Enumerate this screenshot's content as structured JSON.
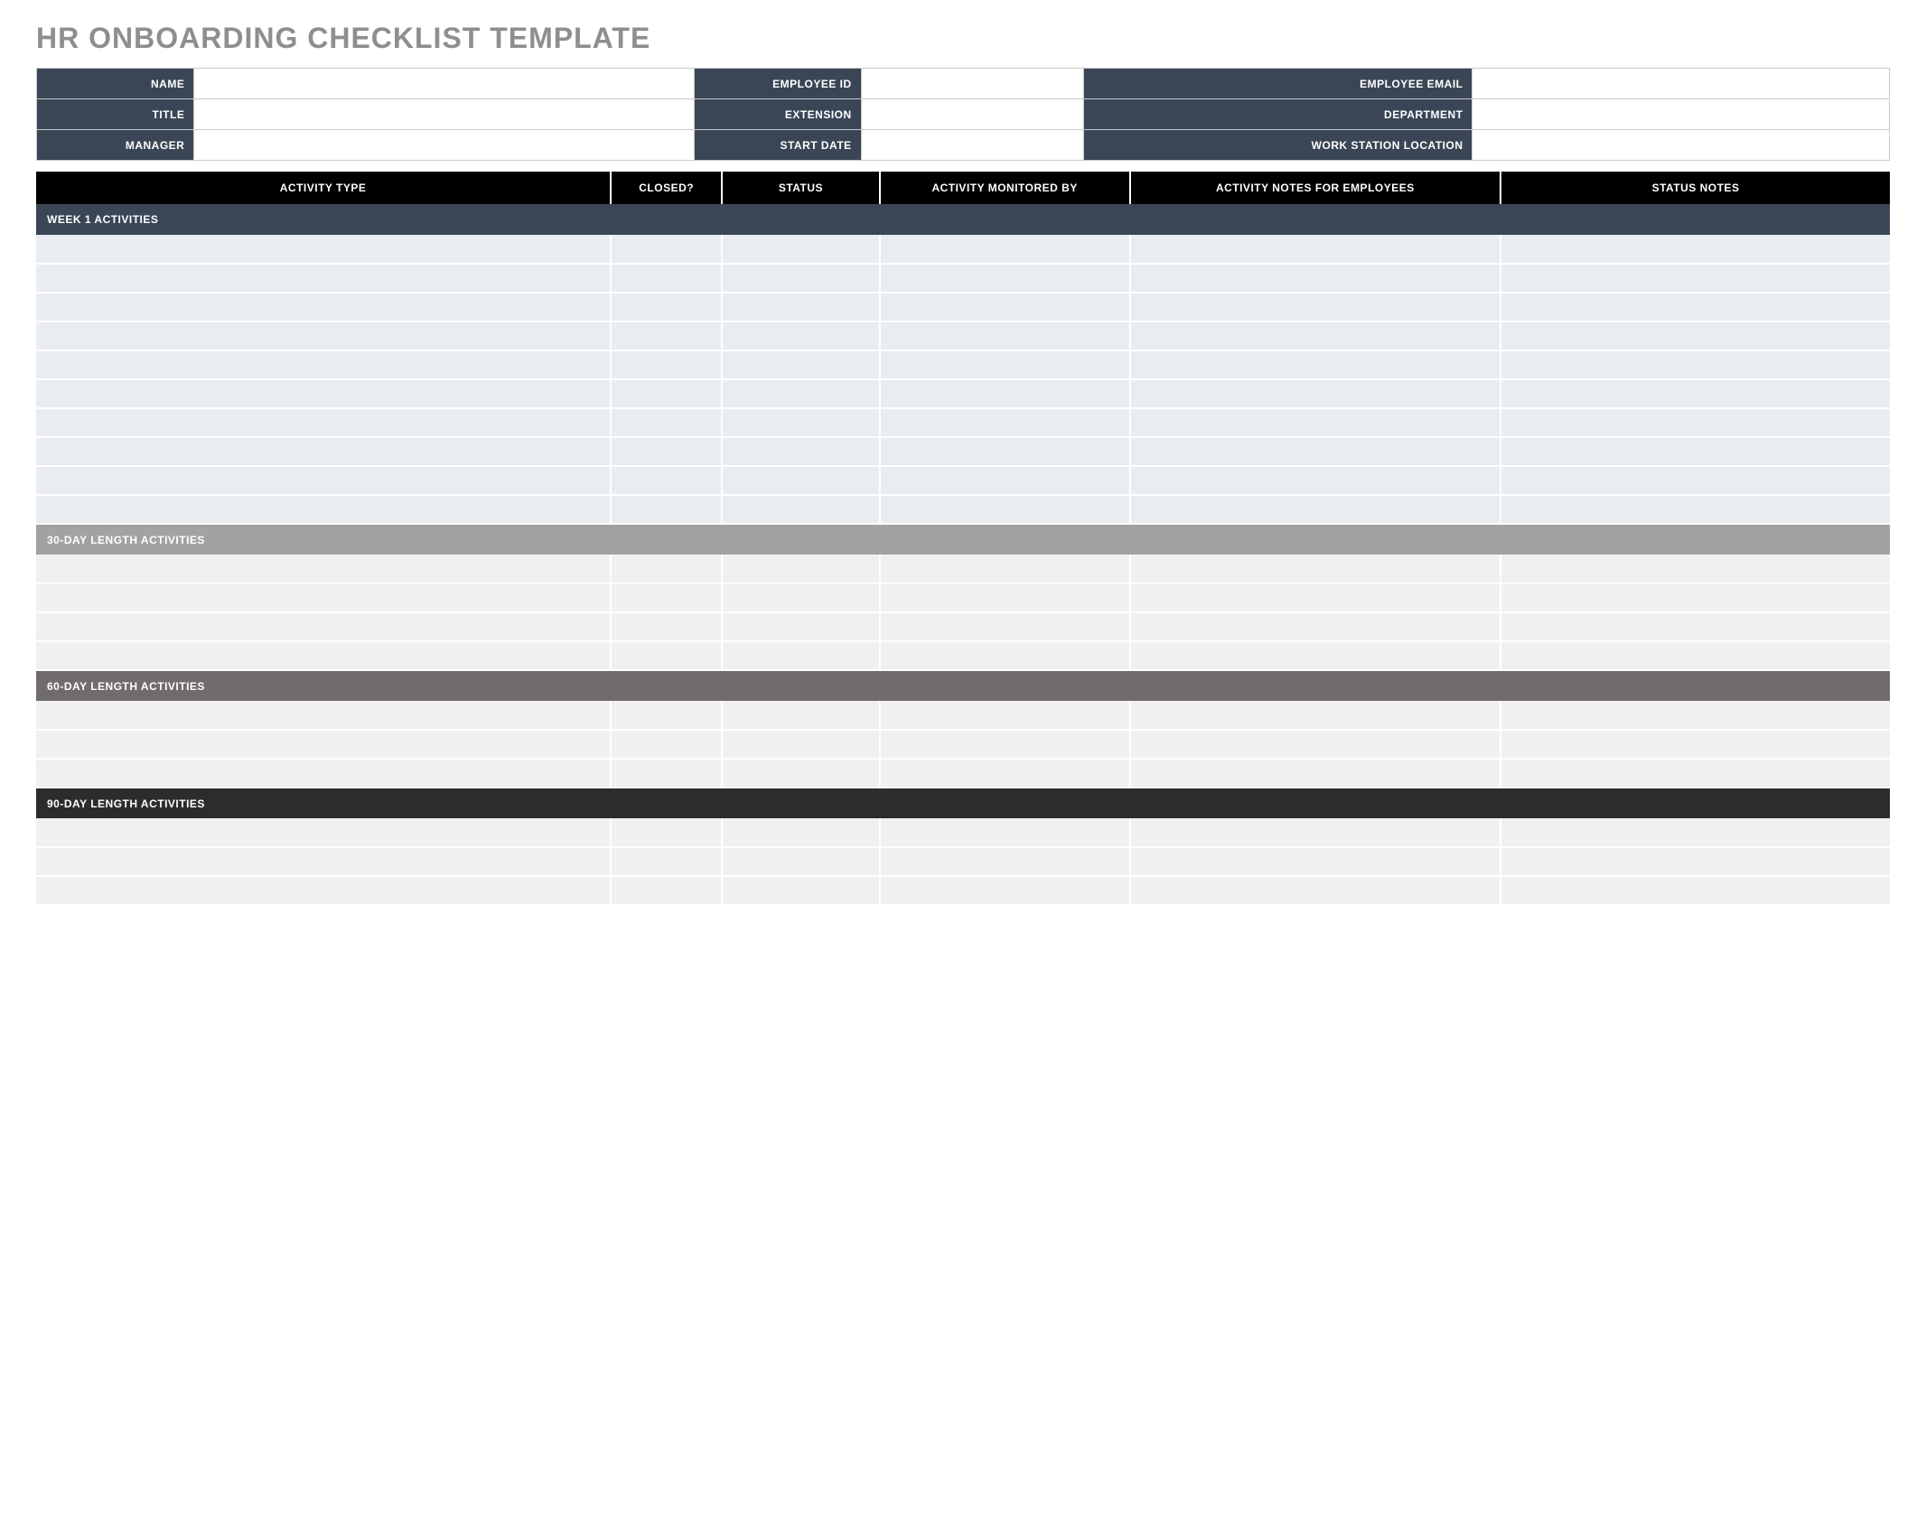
{
  "title": "HR ONBOARDING CHECKLIST TEMPLATE",
  "colors": {
    "title_text": "#8e8e8e",
    "info_label_bg": "#3a4656",
    "header_bg": "#000000",
    "border": "#c9c9c9"
  },
  "info": {
    "rows": [
      [
        {
          "label": "NAME",
          "value": ""
        },
        {
          "label": "EMPLOYEE ID",
          "value": ""
        },
        {
          "label": "EMPLOYEE EMAIL",
          "value": ""
        }
      ],
      [
        {
          "label": "TITLE",
          "value": ""
        },
        {
          "label": "EXTENSION",
          "value": ""
        },
        {
          "label": "DEPARTMENT",
          "value": ""
        }
      ],
      [
        {
          "label": "MANAGER",
          "value": ""
        },
        {
          "label": "START DATE",
          "value": ""
        },
        {
          "label": "WORK STATION LOCATION",
          "value": ""
        }
      ]
    ],
    "col_widths": [
      "8.5%",
      "27%",
      "9%",
      "12%",
      "21%",
      "22.5%"
    ]
  },
  "checklist": {
    "columns": [
      "ACTIVITY TYPE",
      "CLOSED?",
      "STATUS",
      "ACTIVITY MONITORED BY",
      "ACTIVITY NOTES FOR EMPLOYEES",
      "STATUS NOTES"
    ],
    "sections": [
      {
        "label": "WEEK 1 ACTIVITIES",
        "bg": "#3a4656",
        "row_bg": "#e9edf2",
        "rows": 10
      },
      {
        "label": "30-DAY LENGTH ACTIVITIES",
        "bg": "#a2a2a2",
        "row_bg": "#f2f0ef",
        "rows": 4
      },
      {
        "label": "60-DAY LENGTH ACTIVITIES",
        "bg": "#706c6b",
        "row_bg": "#f2f0ef",
        "rows": 3
      },
      {
        "label": "90-DAY LENGTH ACTIVITIES",
        "bg": "#2e2c2b",
        "row_bg": "#f2f0ef",
        "rows": 3
      }
    ]
  }
}
